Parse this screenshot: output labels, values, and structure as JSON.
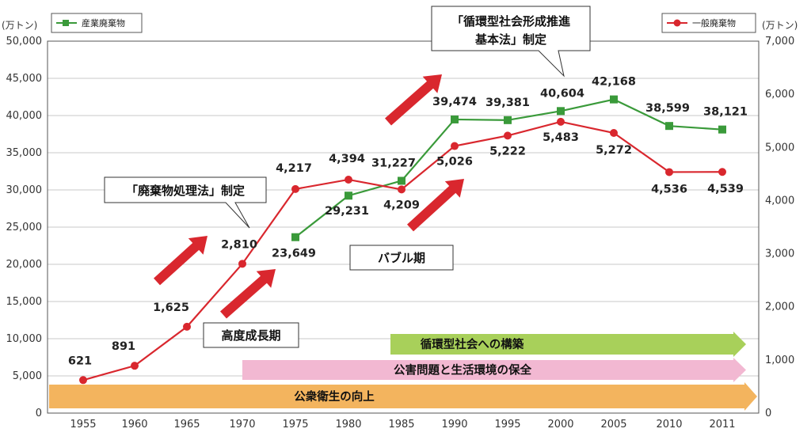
{
  "chart_data": {
    "type": "line",
    "categories": [
      "1955",
      "1960",
      "1965",
      "1970",
      "1975",
      "1980",
      "1985",
      "1990",
      "1995",
      "2000",
      "2005",
      "2010",
      "2011"
    ],
    "left_axis": {
      "unit": "(万トン)",
      "min": 0,
      "max": 50000,
      "ticks": [
        "0",
        "5,000",
        "10,000",
        "15,000",
        "20,000",
        "25,000",
        "30,000",
        "35,000",
        "40,000",
        "45,000",
        "50,000"
      ]
    },
    "right_axis": {
      "unit": "(万トン)",
      "min": 0,
      "max": 7000,
      "ticks": [
        "0",
        "1,000",
        "2,000",
        "3,000",
        "4,000",
        "5,000",
        "6,000",
        "7,000"
      ]
    },
    "series": [
      {
        "name": "産業廃棄物",
        "axis": "left",
        "color": "#3a9a3a",
        "values": [
          null,
          null,
          null,
          null,
          23649,
          29231,
          31227,
          39474,
          39381,
          40604,
          42168,
          38599,
          38121
        ],
        "labels": [
          null,
          null,
          null,
          null,
          "23,649",
          "29,231",
          "31,227",
          "39,474",
          "39,381",
          "40,604",
          "42,168",
          "38,599",
          "38,121"
        ]
      },
      {
        "name": "一般廃棄物",
        "axis": "right",
        "color": "#d9272e",
        "values": [
          621,
          891,
          1625,
          2810,
          4217,
          4394,
          4209,
          5026,
          5222,
          5483,
          5272,
          4536,
          4539
        ],
        "labels": [
          "621",
          "891",
          "1,625",
          "2,810",
          "4,217",
          "4,394",
          "4,209",
          "5,026",
          "5,222",
          "5,483",
          "5,272",
          "4,536",
          "4,539"
        ]
      }
    ],
    "annotations": [
      {
        "text": "「廃棄物処理法」制定"
      },
      {
        "text": "「循環型社会形成推進",
        "text2": "基本法」制定"
      },
      {
        "text": "高度成長期"
      },
      {
        "text": "バブル期"
      }
    ],
    "bands": [
      {
        "text": "循環型社会への構築",
        "color": "#a8d05a",
        "start": "1985"
      },
      {
        "text": "公害問題と生活環境の保全",
        "color": "#f2b8d2",
        "start": "1970"
      },
      {
        "text": "公衆衛生の向上",
        "color": "#f3b45e",
        "start": "1955"
      }
    ],
    "grid": true
  }
}
